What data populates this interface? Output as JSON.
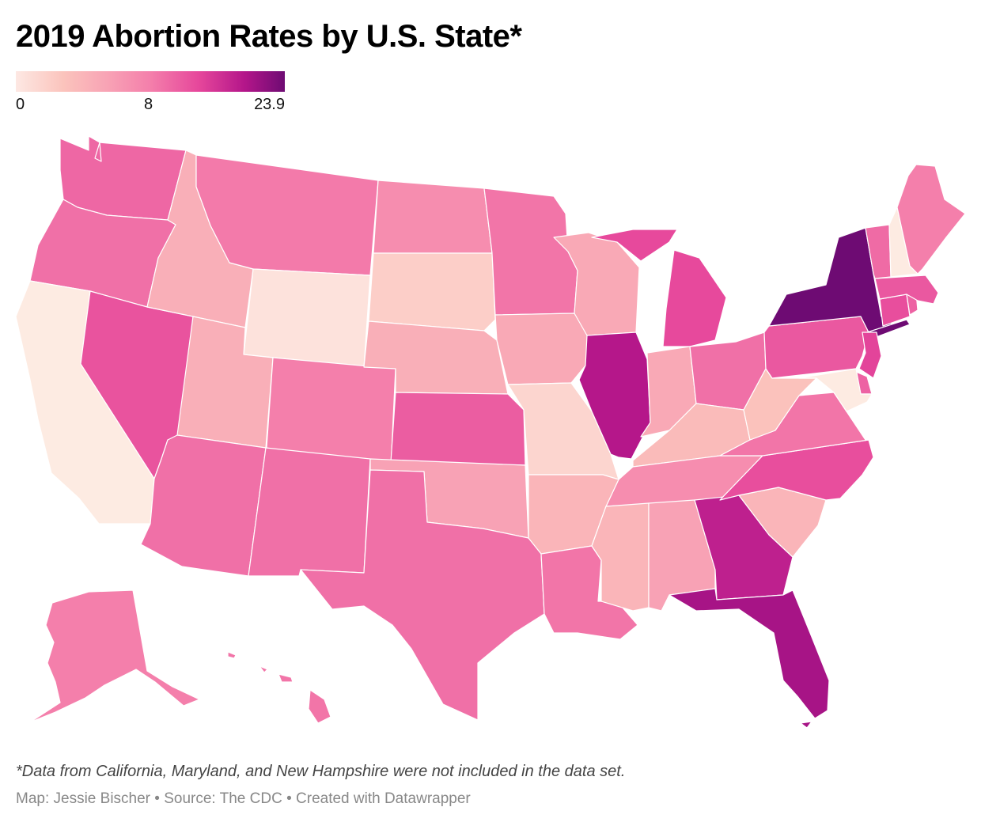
{
  "title": "2019 Abortion Rates by U.S. State*",
  "legend": {
    "min_label": "0",
    "mid_label": "8",
    "max_label": "23.9",
    "min_value": 0,
    "mid_value": 8,
    "max_value": 23.9
  },
  "footnote": "*Data from California, Maryland, and New Hampshire were not included in the data set.",
  "credits": "Map: Jessie Bischer • Source: The CDC • Created with Datawrapper",
  "chart_data": {
    "type": "choropleth",
    "title": "2019 Abortion Rates by U.S. State*",
    "metric": "Abortion rate",
    "scale": {
      "min": 0,
      "mid": 8,
      "max": 23.9
    },
    "no_data": [
      "CA",
      "MD",
      "NH"
    ],
    "states": {
      "WA": 10.5,
      "OR": 9.5,
      "CA": 0,
      "NV": 12.5,
      "ID": 4.5,
      "MT": 8.5,
      "WY": 0.5,
      "UT": 4.5,
      "AZ": 9.5,
      "CO": 8,
      "NM": 9.5,
      "ND": 7,
      "SD": 2,
      "NE": 4.5,
      "KS": 11.5,
      "OK": 5.5,
      "TX": 9.5,
      "MN": 9,
      "IA": 5,
      "MO": 1.5,
      "AR": 4,
      "LA": 9,
      "WI": 5,
      "IL": 19,
      "MI": 13.5,
      "IN": 5,
      "OH": 9.5,
      "KY": 3.5,
      "TN": 7,
      "MS": 4,
      "AL": 5.5,
      "GA": 18,
      "FL": 20,
      "SC": 4,
      "NC": 13,
      "VA": 9,
      "WV": 3,
      "PA": 12,
      "NY": 23.9,
      "NJ": 14,
      "DE": 11,
      "MD": 0,
      "CT": 13,
      "RI": 11,
      "MA": 12,
      "VT": 10,
      "NH": 0,
      "ME": 8,
      "AK": 8,
      "HI": 9
    }
  },
  "colors": {
    "background": "#ffffff",
    "state_border": "#ffffff",
    "scale_low": "#fde8e3",
    "scale_mid": "#f47fab",
    "scale_high": "#6e0b73",
    "no_data": "#fdebe2"
  }
}
